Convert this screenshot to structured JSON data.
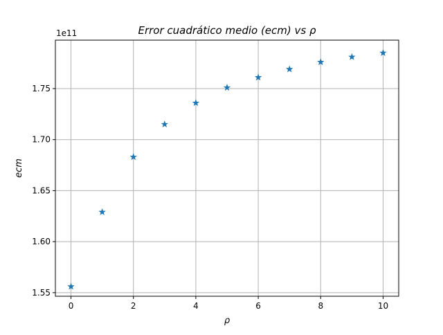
{
  "chart_data": {
    "type": "scatter",
    "title": "Error cuadrático medio (ecm) vs ρ",
    "xlabel": "ρ",
    "ylabel": "ecm",
    "y_offset_label": "1e11",
    "xlim": [
      -0.5,
      10.5
    ],
    "ylim": [
      1.5465,
      1.7975
    ],
    "x_ticks": [
      0,
      2,
      4,
      6,
      8,
      10
    ],
    "x_tick_labels": [
      "0",
      "2",
      "4",
      "6",
      "8",
      "10"
    ],
    "y_ticks": [
      1.55,
      1.6,
      1.65,
      1.7,
      1.75
    ],
    "y_tick_labels": [
      "1.55",
      "1.60",
      "1.65",
      "1.70",
      "1.75"
    ],
    "grid": true,
    "marker": "star",
    "color": "#1f77b4",
    "x": [
      0,
      1,
      2,
      3,
      4,
      5,
      6,
      7,
      8,
      9,
      10
    ],
    "y": [
      1.556,
      1.629,
      1.683,
      1.715,
      1.736,
      1.751,
      1.761,
      1.769,
      1.776,
      1.781,
      1.785
    ]
  }
}
